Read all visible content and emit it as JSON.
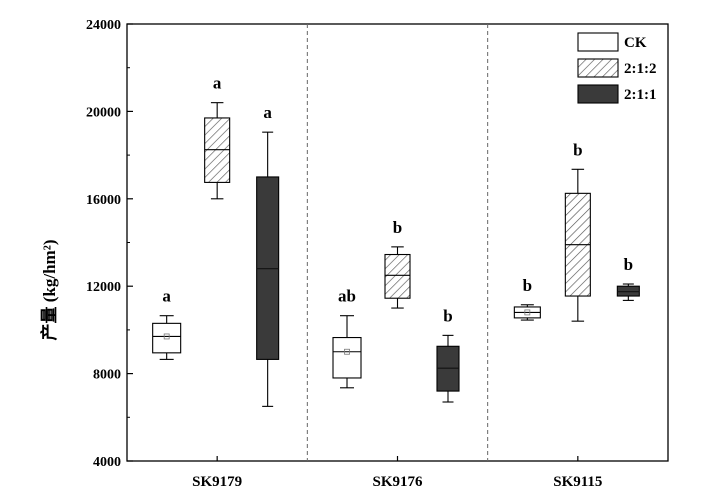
{
  "chart_data": {
    "type": "box",
    "ylabel": "产量 (kg/hm²)",
    "ylim": [
      4000,
      24000
    ],
    "yticks": [
      4000,
      8000,
      12000,
      16000,
      20000,
      24000
    ],
    "categories": [
      "SK9179",
      "SK9176",
      "SK9115"
    ],
    "legend": {
      "position": "top-right"
    },
    "grid": false,
    "colors": {
      "axis": "#000000",
      "separator": "#666666",
      "dark_fill": "#3a3a3a",
      "hatch": "#555555"
    },
    "series": [
      {
        "name": "CK",
        "style": "white",
        "boxes": [
          {
            "min": 8650,
            "q1": 8950,
            "median": 9700,
            "q3": 10300,
            "max": 10650,
            "mean": 9700,
            "sig": "a"
          },
          {
            "min": 7350,
            "q1": 7800,
            "median": 9000,
            "q3": 9650,
            "max": 10650,
            "mean": 9000,
            "sig": "ab"
          },
          {
            "min": 10450,
            "q1": 10550,
            "median": 10800,
            "q3": 11050,
            "max": 11150,
            "mean": 10800,
            "sig": "b"
          }
        ]
      },
      {
        "name": "2:1:2",
        "style": "hatched",
        "boxes": [
          {
            "min": 16000,
            "q1": 16750,
            "median": 18250,
            "q3": 19700,
            "max": 20400,
            "sig": "a"
          },
          {
            "min": 11000,
            "q1": 11450,
            "median": 12500,
            "q3": 13450,
            "max": 13800,
            "sig": "b"
          },
          {
            "min": 10400,
            "q1": 11550,
            "median": 13900,
            "q3": 16250,
            "max": 17350,
            "sig": "b"
          }
        ]
      },
      {
        "name": "2:1:1",
        "style": "dark",
        "boxes": [
          {
            "min": 6500,
            "q1": 8650,
            "median": 12800,
            "q3": 17000,
            "max": 19050,
            "sig": "a"
          },
          {
            "min": 6700,
            "q1": 7200,
            "median": 8250,
            "q3": 9250,
            "max": 9750,
            "sig": "b"
          },
          {
            "min": 11350,
            "q1": 11550,
            "median": 11750,
            "q3": 12000,
            "max": 12100,
            "sig": "b"
          }
        ]
      }
    ]
  }
}
